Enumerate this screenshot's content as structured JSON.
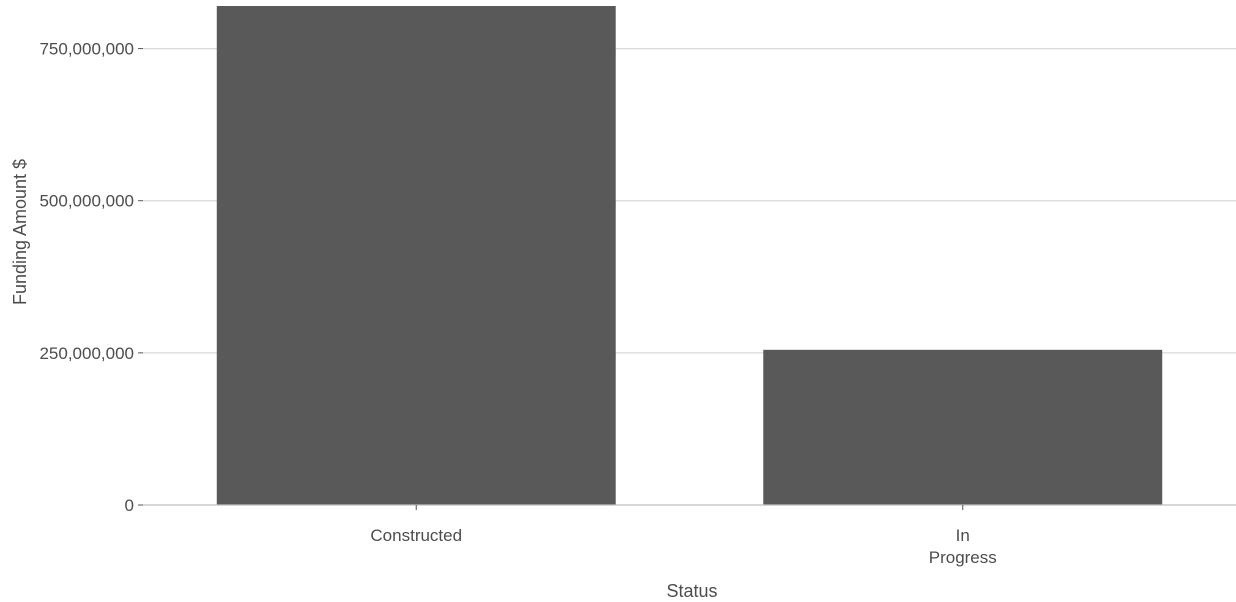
{
  "chart_data": {
    "type": "bar",
    "categories": [
      "Constructed",
      "In\nProgress"
    ],
    "values": [
      820000000,
      255000000
    ],
    "xlabel": "Status",
    "ylabel": "Funding Amount $",
    "ylim": [
      0,
      820000000
    ],
    "yticks": [
      0,
      250000000,
      500000000,
      750000000
    ],
    "ytick_labels": [
      "0",
      "250,000,000",
      "500,000,000",
      "750,000,000"
    ],
    "grid": true,
    "bar_color": "#595959",
    "grid_color": "#d9d9d9"
  }
}
